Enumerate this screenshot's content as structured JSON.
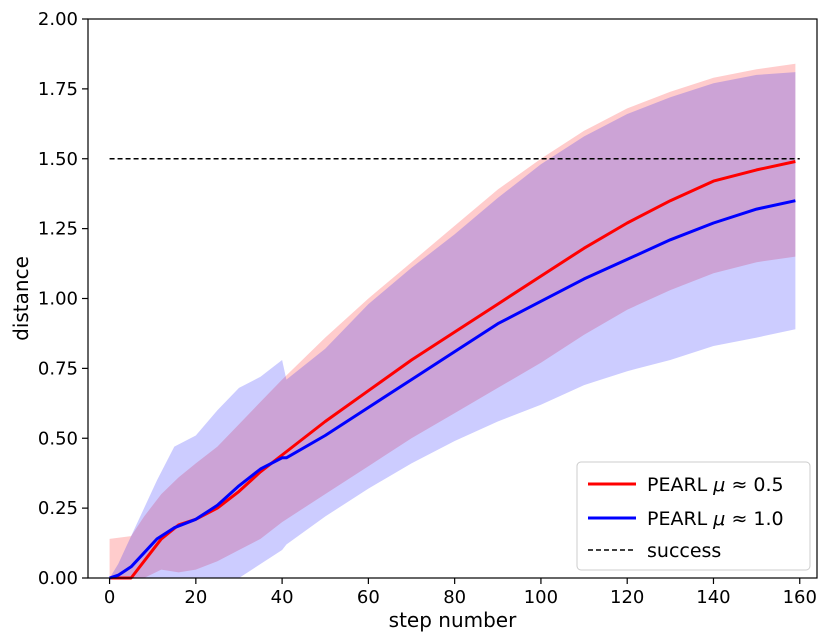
{
  "chart_data": {
    "type": "line",
    "title": "",
    "xlabel": "step number",
    "ylabel": "distance",
    "xlim": [
      -5,
      164
    ],
    "ylim": [
      0,
      2.0
    ],
    "xticks": [
      0,
      20,
      40,
      60,
      80,
      100,
      120,
      140,
      160
    ],
    "yticks": [
      0.0,
      0.25,
      0.5,
      0.75,
      1.0,
      1.25,
      1.5,
      1.75,
      2.0
    ],
    "xtick_labels": [
      "0",
      "20",
      "40",
      "60",
      "80",
      "100",
      "120",
      "140",
      "160"
    ],
    "ytick_labels": [
      "0.00",
      "0.25",
      "0.50",
      "0.75",
      "1.00",
      "1.25",
      "1.50",
      "1.75",
      "2.00"
    ],
    "grid": false,
    "legend_position": "bottom-right",
    "series": [
      {
        "name": "PEARL μ≈ 0.5",
        "legend_prefix": "PEARL",
        "legend_mu": "μ",
        "legend_value": "≈  0.5",
        "color": "#ff0000",
        "x": [
          0,
          5,
          8,
          12,
          16,
          20,
          25,
          30,
          35,
          40,
          50,
          60,
          70,
          80,
          90,
          100,
          110,
          120,
          130,
          140,
          150,
          159
        ],
        "mean": [
          0,
          0,
          0.06,
          0.14,
          0.19,
          0.21,
          0.25,
          0.31,
          0.38,
          0.44,
          0.56,
          0.67,
          0.78,
          0.88,
          0.98,
          1.08,
          1.18,
          1.27,
          1.35,
          1.42,
          1.46,
          1.49
        ],
        "upper": [
          0.14,
          0.15,
          0.22,
          0.3,
          0.36,
          0.41,
          0.47,
          0.55,
          0.63,
          0.71,
          0.86,
          1.0,
          1.13,
          1.26,
          1.39,
          1.5,
          1.6,
          1.68,
          1.74,
          1.79,
          1.82,
          1.84
        ],
        "lower": [
          0,
          0,
          0,
          0.03,
          0.02,
          0.03,
          0.06,
          0.1,
          0.14,
          0.2,
          0.3,
          0.4,
          0.5,
          0.59,
          0.68,
          0.77,
          0.87,
          0.96,
          1.03,
          1.09,
          1.13,
          1.15
        ]
      },
      {
        "name": "PEARL μ≈ 1.0",
        "legend_prefix": "PEARL",
        "legend_mu": "μ",
        "legend_value": "≈  1.0",
        "color": "#0000ff",
        "x": [
          0,
          2,
          5,
          8,
          11,
          15,
          20,
          25,
          30,
          35,
          40,
          41,
          50,
          60,
          70,
          80,
          90,
          100,
          110,
          120,
          130,
          140,
          150,
          159
        ],
        "mean": [
          0,
          0.01,
          0.04,
          0.09,
          0.14,
          0.18,
          0.21,
          0.26,
          0.33,
          0.39,
          0.43,
          0.43,
          0.51,
          0.61,
          0.71,
          0.81,
          0.91,
          0.99,
          1.07,
          1.14,
          1.21,
          1.27,
          1.32,
          1.35
        ],
        "upper": [
          0,
          0.05,
          0.15,
          0.25,
          0.35,
          0.47,
          0.51,
          0.6,
          0.68,
          0.72,
          0.78,
          0.71,
          0.82,
          0.98,
          1.11,
          1.23,
          1.36,
          1.48,
          1.58,
          1.66,
          1.72,
          1.77,
          1.8,
          1.81
        ],
        "lower": [
          0,
          0,
          0,
          0,
          0,
          0,
          0,
          0,
          0,
          0.05,
          0.1,
          0.12,
          0.22,
          0.32,
          0.41,
          0.49,
          0.56,
          0.62,
          0.69,
          0.74,
          0.78,
          0.83,
          0.86,
          0.89
        ]
      }
    ],
    "reference_line": {
      "name": "success",
      "y": 1.5,
      "x_range": [
        0,
        160
      ],
      "style": "dashed",
      "color": "#000000"
    }
  }
}
